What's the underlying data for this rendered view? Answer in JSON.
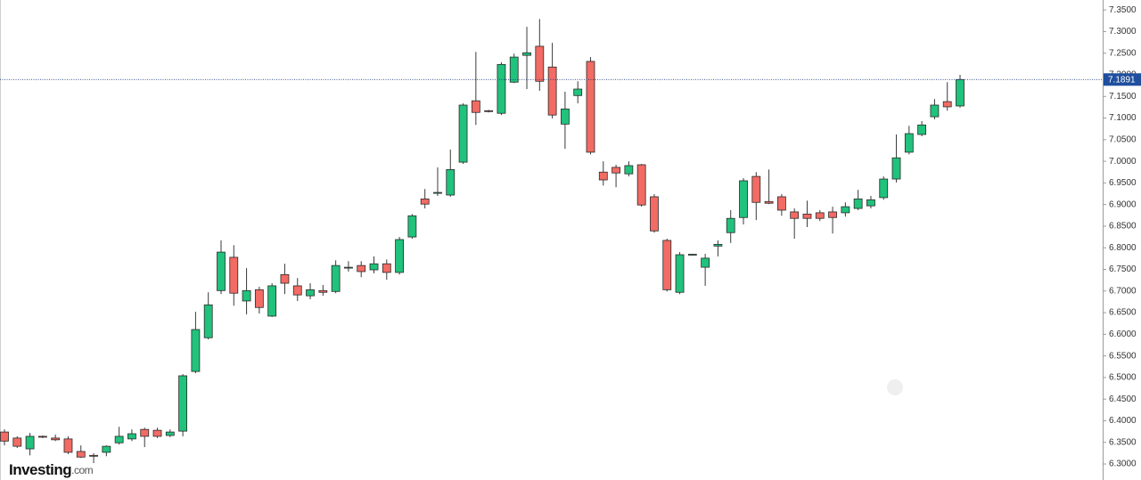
{
  "chart_data": {
    "type": "candlestick",
    "logo": "Investing",
    "logo_suffix": ".com",
    "ylim": [
      6.263,
      7.373
    ],
    "yticks": [
      {
        "value": 6.3,
        "label": "6.3000"
      },
      {
        "value": 6.35,
        "label": "6.3500"
      },
      {
        "value": 6.4,
        "label": "6.4000"
      },
      {
        "value": 6.45,
        "label": "6.4500"
      },
      {
        "value": 6.5,
        "label": "6.5000"
      },
      {
        "value": 6.55,
        "label": "6.5500"
      },
      {
        "value": 6.6,
        "label": "6.6000"
      },
      {
        "value": 6.65,
        "label": "6.6500"
      },
      {
        "value": 6.7,
        "label": "6.7000"
      },
      {
        "value": 6.75,
        "label": "6.7500"
      },
      {
        "value": 6.8,
        "label": "6.8000"
      },
      {
        "value": 6.85,
        "label": "6.8500"
      },
      {
        "value": 6.9,
        "label": "6.9000"
      },
      {
        "value": 6.95,
        "label": "6.9500"
      },
      {
        "value": 7.0,
        "label": "7.0000"
      },
      {
        "value": 7.05,
        "label": "7.0500"
      },
      {
        "value": 7.1,
        "label": "7.1000"
      },
      {
        "value": 7.15,
        "label": "7.1500"
      },
      {
        "value": 7.2,
        "label": "7.2000"
      },
      {
        "value": 7.25,
        "label": "7.2500"
      },
      {
        "value": 7.3,
        "label": "7.3000"
      },
      {
        "value": 7.35,
        "label": "7.3500"
      }
    ],
    "last_price": 7.1891,
    "up_color": "#20c27c",
    "down_color": "#f26b64",
    "open": [
      6.374,
      6.36,
      6.335,
      6.364,
      6.36,
      6.358,
      6.329,
      6.32,
      6.327,
      6.349,
      6.358,
      6.38,
      6.378,
      6.366,
      6.376,
      6.514,
      6.592,
      6.701,
      6.778,
      6.677,
      6.703,
      6.642,
      6.738,
      6.712,
      6.689,
      6.701,
      6.699,
      6.753,
      6.759,
      6.749,
      6.763,
      6.743,
      6.825,
      6.913,
      6.926,
      6.922,
      6.998,
      7.14,
      7.117,
      7.111,
      7.183,
      7.245,
      7.266,
      7.218,
      7.086,
      7.152,
      7.231,
      6.975,
      6.986,
      6.971,
      6.992,
      6.918,
      6.817,
      6.697,
      6.784,
      6.755,
      6.804,
      6.835,
      6.87,
      6.965,
      6.907,
      6.918,
      6.883,
      6.878,
      6.881,
      6.883,
      6.881,
      6.891,
      6.897,
      6.916,
      6.959,
      7.021,
      7.062,
      7.103,
      7.138,
      7.128
    ],
    "high": [
      6.38,
      6.364,
      6.372,
      6.366,
      6.368,
      6.364,
      6.343,
      6.325,
      6.343,
      6.386,
      6.38,
      6.384,
      6.384,
      6.38,
      6.508,
      6.652,
      6.697,
      6.817,
      6.806,
      6.753,
      6.71,
      6.718,
      6.763,
      6.73,
      6.718,
      6.714,
      6.771,
      6.769,
      6.769,
      6.78,
      6.773,
      6.825,
      6.878,
      6.936,
      6.986,
      7.027,
      7.134,
      7.253,
      7.119,
      7.229,
      7.249,
      7.311,
      7.329,
      7.274,
      7.161,
      7.185,
      7.241,
      7.0,
      6.992,
      7.0,
      6.994,
      6.924,
      6.821,
      6.79,
      6.786,
      6.786,
      6.817,
      6.887,
      6.961,
      6.975,
      6.981,
      6.924,
      6.891,
      6.909,
      6.887,
      6.895,
      6.905,
      6.934,
      6.92,
      6.965,
      7.062,
      7.082,
      7.093,
      7.144,
      7.183,
      7.2
    ],
    "low": [
      6.343,
      6.337,
      6.32,
      6.36,
      6.353,
      6.323,
      6.314,
      6.302,
      6.318,
      6.345,
      6.353,
      6.339,
      6.36,
      6.362,
      6.364,
      6.51,
      6.588,
      6.693,
      6.666,
      6.646,
      6.648,
      6.64,
      6.693,
      6.677,
      6.681,
      6.689,
      6.695,
      6.745,
      6.732,
      6.741,
      6.726,
      6.738,
      6.821,
      6.891,
      6.92,
      6.918,
      6.994,
      7.084,
      7.113,
      7.107,
      7.181,
      7.167,
      7.163,
      7.099,
      7.029,
      7.134,
      7.016,
      6.944,
      6.94,
      6.965,
      6.895,
      6.835,
      6.699,
      6.693,
      6.782,
      6.712,
      6.78,
      6.811,
      6.854,
      6.864,
      6.901,
      6.874,
      6.821,
      6.848,
      6.862,
      6.833,
      6.872,
      6.887,
      6.891,
      6.911,
      6.951,
      7.016,
      7.058,
      7.097,
      7.117,
      7.124
    ],
    "close": [
      6.353,
      6.341,
      6.364,
      6.362,
      6.356,
      6.327,
      6.316,
      6.318,
      6.341,
      6.364,
      6.37,
      6.364,
      6.364,
      6.374,
      6.504,
      6.611,
      6.668,
      6.79,
      6.695,
      6.701,
      6.662,
      6.712,
      6.718,
      6.691,
      6.703,
      6.697,
      6.759,
      6.755,
      6.745,
      6.763,
      6.743,
      6.819,
      6.874,
      6.901,
      6.928,
      6.981,
      7.13,
      7.113,
      7.115,
      7.224,
      7.241,
      7.251,
      7.185,
      7.107,
      7.121,
      7.167,
      7.021,
      6.957,
      6.973,
      6.99,
      6.899,
      6.839,
      6.703,
      6.784,
      6.785,
      6.776,
      6.808,
      6.868,
      6.955,
      6.905,
      6.903,
      6.887,
      6.868,
      6.868,
      6.868,
      6.87,
      6.895,
      6.913,
      6.911,
      6.959,
      7.008,
      7.064,
      7.084,
      7.13,
      7.126,
      7.1891
    ]
  }
}
